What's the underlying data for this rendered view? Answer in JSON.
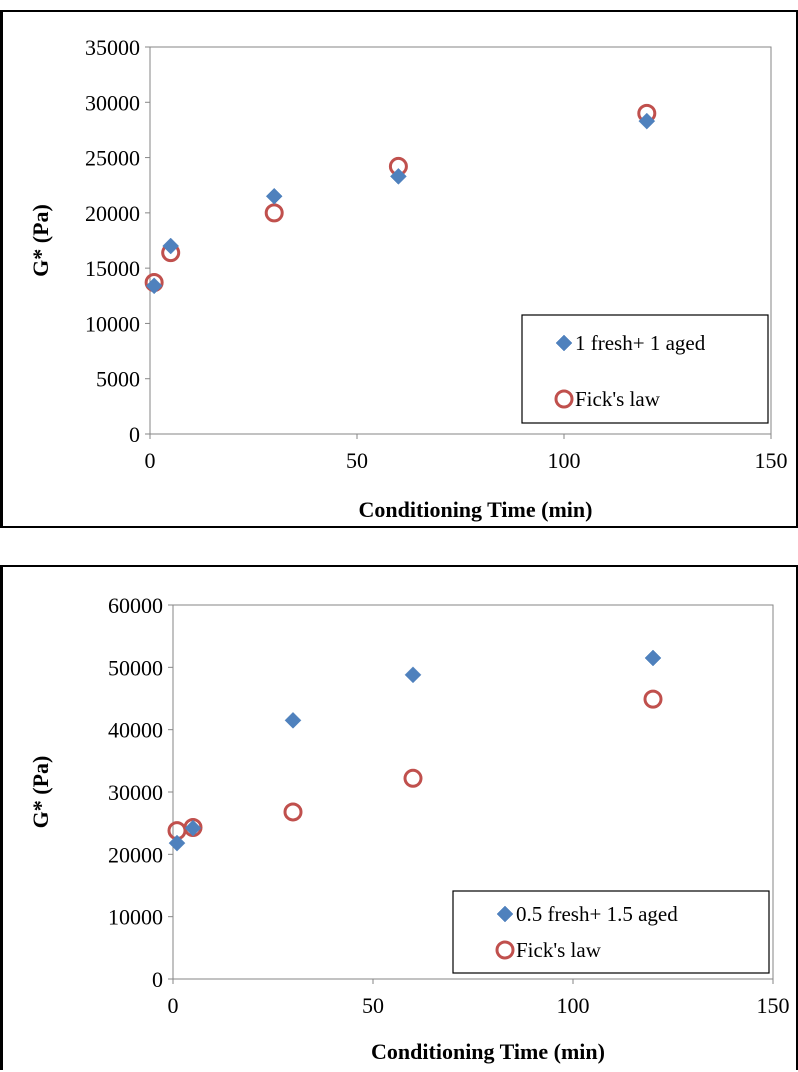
{
  "chart_data": [
    {
      "type": "scatter",
      "xlabel": "Conditioning Time (min)",
      "ylabel": "G* (Pa)",
      "xlim": [
        0,
        150
      ],
      "ylim": [
        0,
        35000
      ],
      "xticks": [
        0,
        50,
        100,
        150
      ],
      "yticks": [
        0,
        5000,
        10000,
        15000,
        20000,
        25000,
        30000,
        35000
      ],
      "grid": false,
      "legend": "bottom-right",
      "series": [
        {
          "name": "1 fresh+ 1 aged",
          "marker": "diamond",
          "color": "#4F81BD",
          "x": [
            1,
            5,
            30,
            60,
            120
          ],
          "y": [
            13400,
            17000,
            21500,
            23300,
            28300
          ]
        },
        {
          "name": "Fick's law",
          "marker": "circle-open",
          "color": "#C0504D",
          "x": [
            1,
            5,
            30,
            60,
            120
          ],
          "y": [
            13700,
            16400,
            20000,
            24200,
            29000
          ]
        }
      ]
    },
    {
      "type": "scatter",
      "xlabel": "Conditioning Time (min)",
      "ylabel": "G* (Pa)",
      "xlim": [
        0,
        150
      ],
      "ylim": [
        0,
        60000
      ],
      "xticks": [
        0,
        50,
        100,
        150
      ],
      "yticks": [
        0,
        10000,
        20000,
        30000,
        40000,
        50000,
        60000
      ],
      "grid": false,
      "legend": "bottom-right",
      "series": [
        {
          "name": "0.5 fresh+ 1.5 aged",
          "marker": "diamond",
          "color": "#4F81BD",
          "x": [
            1,
            5,
            30,
            60,
            120
          ],
          "y": [
            21800,
            24200,
            41500,
            48800,
            51500
          ]
        },
        {
          "name": "Fick's law",
          "marker": "circle-open",
          "color": "#C0504D",
          "x": [
            1,
            5,
            30,
            60,
            120
          ],
          "y": [
            23800,
            24300,
            26800,
            32200,
            44900
          ]
        }
      ]
    }
  ]
}
